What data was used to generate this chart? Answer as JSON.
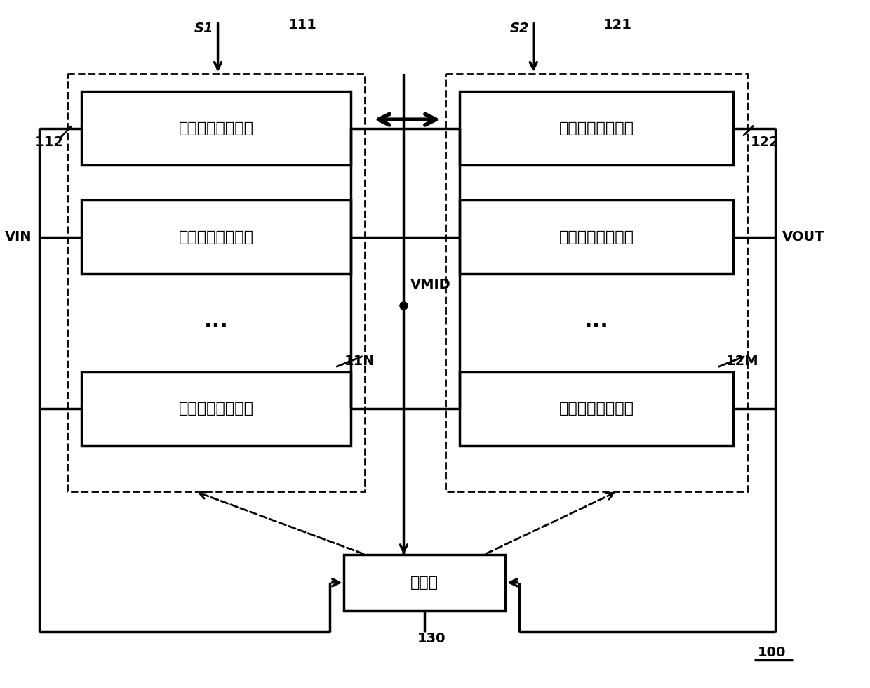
{
  "bg_color": "#ffffff",
  "line_color": "#000000",
  "title": "100",
  "stage1_label": "第一级电压转换器",
  "stage2_label": "第二级电压转换器",
  "controller_label": "控制器",
  "vmid_label": "VMID",
  "vin_label": "VIN",
  "vout_label": "VOUT",
  "s1_label": "S1",
  "s2_label": "S2",
  "label_111": "111",
  "label_112": "112",
  "label_11N": "11N",
  "label_121": "121",
  "label_122": "122",
  "label_12M": "12M",
  "label_130": "130",
  "dots": "···"
}
